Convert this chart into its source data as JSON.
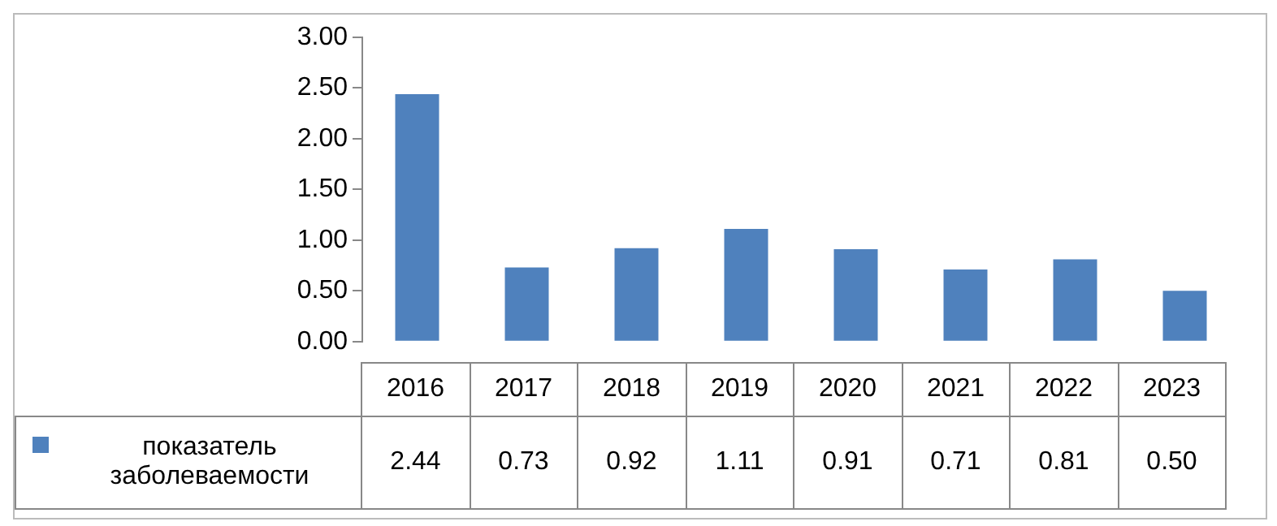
{
  "chart_data": {
    "type": "bar",
    "categories": [
      "2016",
      "2017",
      "2018",
      "2019",
      "2020",
      "2021",
      "2022",
      "2023"
    ],
    "series": [
      {
        "name": "показатель заболеваемости",
        "color": "#4f81bd",
        "values": [
          2.44,
          0.73,
          0.92,
          1.11,
          0.91,
          0.71,
          0.81,
          0.5
        ],
        "value_labels": [
          "2.44",
          "0.73",
          "0.92",
          "1.11",
          "0.91",
          "0.71",
          "0.81",
          "0.50"
        ]
      }
    ],
    "ylim": [
      0,
      3
    ],
    "yticks": [
      {
        "value": 0,
        "label": "0.00"
      },
      {
        "value": 0.5,
        "label": "0.50"
      },
      {
        "value": 1,
        "label": "1.00"
      },
      {
        "value": 1.5,
        "label": "1.50"
      },
      {
        "value": 2,
        "label": "2.00"
      },
      {
        "value": 2.5,
        "label": "2.50"
      },
      {
        "value": 3,
        "label": "3.00"
      }
    ],
    "grid": false,
    "legend": "bottom left"
  }
}
